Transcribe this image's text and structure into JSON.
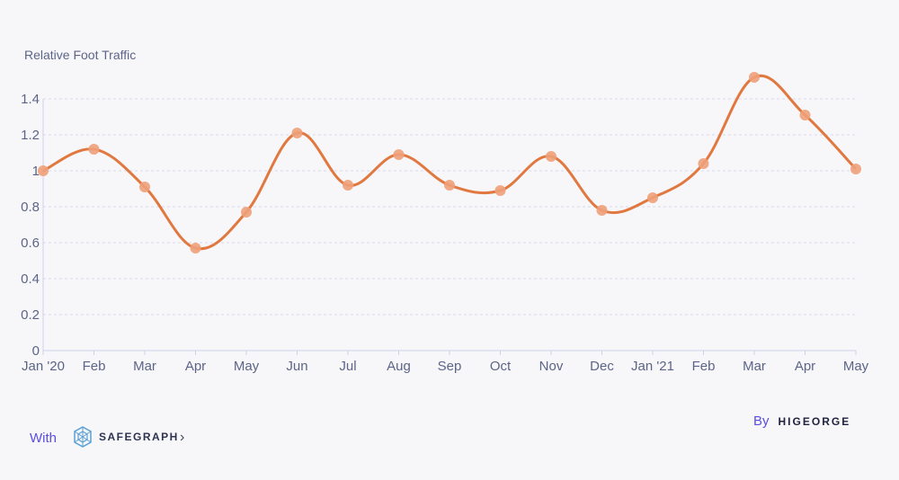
{
  "chart_data": {
    "type": "line",
    "ylabel": "Relative Foot Traffic",
    "categories": [
      "Jan '20",
      "Feb",
      "Mar",
      "Apr",
      "May",
      "Jun",
      "Jul",
      "Aug",
      "Sep",
      "Oct",
      "Nov",
      "Dec",
      "Jan '21",
      "Feb",
      "Mar",
      "Apr",
      "May"
    ],
    "values": [
      1.0,
      1.12,
      0.91,
      0.57,
      0.77,
      1.21,
      0.92,
      1.09,
      0.92,
      0.89,
      1.08,
      0.78,
      0.85,
      1.04,
      1.52,
      1.31,
      1.01
    ],
    "yticks": [
      "0",
      "0.2",
      "0.4",
      "0.6",
      "0.8",
      "1",
      "1.2",
      "1.4"
    ],
    "ylim": [
      0,
      1.55
    ],
    "grid": true,
    "line_color": "#e07840",
    "point_color": "#eea07a"
  },
  "footer": {
    "with_label": "With",
    "safegraph_logo_text": "SAFEGRAPH",
    "chevron": "›",
    "by_label": "By",
    "higeorge_logo_text": "HIGEORGE"
  },
  "colors": {
    "accent": "#5a4ee0",
    "text": "#5c6488",
    "background": "#f7f7f9"
  }
}
